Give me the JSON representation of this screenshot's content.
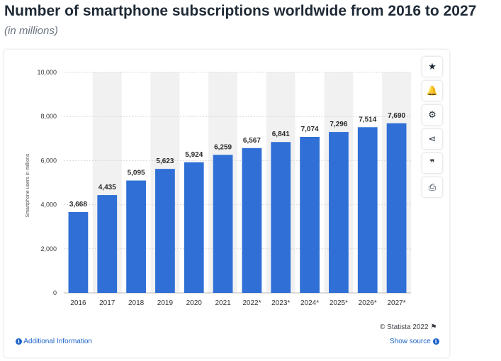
{
  "header": {
    "title": "Number of smartphone subscriptions worldwide from 2016 to 2027",
    "subtitle": "(in millions)"
  },
  "toolbar": {
    "buttons": [
      {
        "icon": "star-icon",
        "glyph": "★"
      },
      {
        "icon": "bell-icon",
        "glyph": "🔔"
      },
      {
        "icon": "gear-icon",
        "glyph": "⚙"
      },
      {
        "icon": "share-icon",
        "glyph": "⋖"
      },
      {
        "icon": "quote-icon",
        "glyph": "❞"
      },
      {
        "icon": "print-icon",
        "glyph": "⎙"
      }
    ]
  },
  "footer": {
    "copyright": "© Statista 2022",
    "additional_info": "Additional Information",
    "show_source": "Show source",
    "info_glyph": "i",
    "flag_glyph": "⚑"
  },
  "colors": {
    "bar": "#2f6fd6",
    "band": "#f1f1f1",
    "axis_text": "#333333",
    "link": "#1c63c9"
  },
  "chart_data": {
    "type": "bar",
    "ylabel": "Smartphone users in millions",
    "xlabel": "",
    "ylim": [
      0,
      10000
    ],
    "yticks": [
      0,
      2000,
      4000,
      6000,
      8000,
      10000
    ],
    "ytick_labels": [
      "0",
      "2,000",
      "4,000",
      "6,000",
      "8,000",
      "10,000"
    ],
    "grid": true,
    "categories": [
      "2016",
      "2017",
      "2018",
      "2019",
      "2020",
      "2021",
      "2022*",
      "2023*",
      "2024*",
      "2025*",
      "2026*",
      "2027*"
    ],
    "values": [
      3668,
      4435,
      5095,
      5623,
      5924,
      6259,
      6567,
      6841,
      7074,
      7296,
      7514,
      7690
    ],
    "value_labels": [
      "3,668",
      "4,435",
      "5,095",
      "5,623",
      "5,924",
      "6,259",
      "6,567",
      "6,841",
      "7,074",
      "7,296",
      "7,514",
      "7,690"
    ]
  }
}
